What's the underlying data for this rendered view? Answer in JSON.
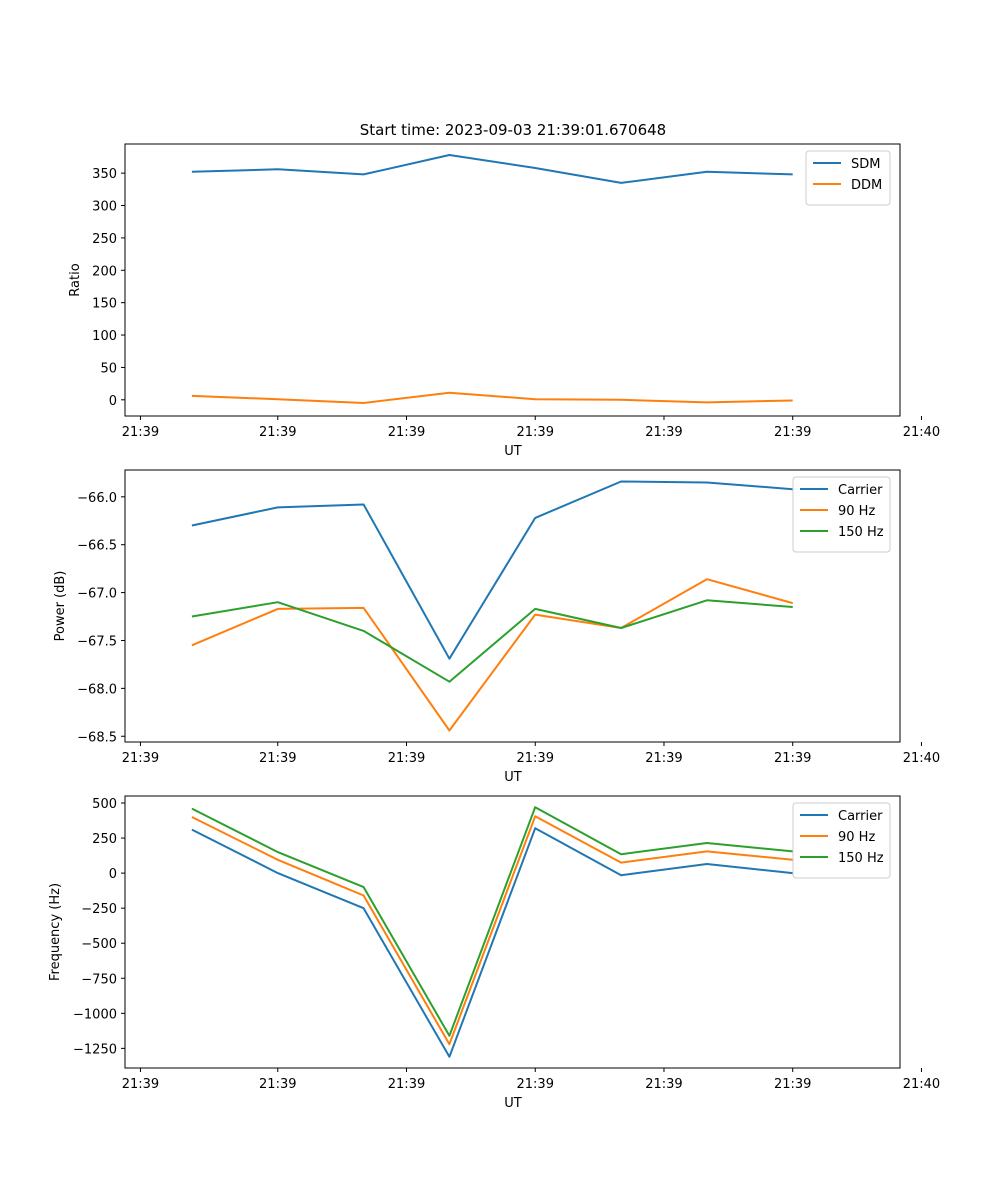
{
  "chart_data": [
    {
      "type": "line",
      "title": "Start time: 2023-09-03 21:39:01.670648",
      "xlabel": "UT",
      "ylabel": "Ratio",
      "x": [
        1,
        2,
        3,
        4,
        5,
        6,
        7,
        8
      ],
      "xlim": [
        0.22,
        9.25
      ],
      "xticks": [
        0.4,
        2.0,
        3.5,
        5.0,
        6.5,
        8.0,
        9.5
      ],
      "xtick_labels": [
        "21:39",
        "21:39",
        "21:39",
        "21:39",
        "21:39",
        "21:39",
        "21:40"
      ],
      "ylim": [
        -25,
        395
      ],
      "yticks": [
        0,
        50,
        100,
        150,
        200,
        250,
        300,
        350
      ],
      "ytick_labels": [
        "0",
        "50",
        "100",
        "150",
        "200",
        "250",
        "300",
        "350"
      ],
      "legend_position": "upper-right",
      "series": [
        {
          "name": "SDM",
          "color": "#1f77b4",
          "values": [
            352,
            356,
            348,
            378,
            358,
            335,
            352,
            348
          ]
        },
        {
          "name": "DDM",
          "color": "#ff7f0e",
          "values": [
            6,
            1,
            -5,
            11,
            1,
            0,
            -4,
            -1
          ]
        }
      ]
    },
    {
      "type": "line",
      "title": "",
      "xlabel": "UT",
      "ylabel": "Power (dB)",
      "x": [
        1,
        2,
        3,
        4,
        5,
        6,
        7,
        8
      ],
      "xlim": [
        0.22,
        9.25
      ],
      "xticks": [
        0.4,
        2.0,
        3.5,
        5.0,
        6.5,
        8.0,
        9.5
      ],
      "xtick_labels": [
        "21:39",
        "21:39",
        "21:39",
        "21:39",
        "21:39",
        "21:39",
        "21:40"
      ],
      "ylim": [
        -68.56,
        -65.72
      ],
      "yticks": [
        -68.5,
        -68.0,
        -67.5,
        -67.0,
        -66.5,
        -66.0
      ],
      "ytick_labels": [
        "−68.5",
        "−68.0",
        "−67.5",
        "−67.0",
        "−66.5",
        "−66.0"
      ],
      "legend_position": "upper-right",
      "series": [
        {
          "name": "Carrier",
          "color": "#1f77b4",
          "values": [
            -66.3,
            -66.11,
            -66.08,
            -67.69,
            -66.22,
            -65.84,
            -65.85,
            -65.92
          ]
        },
        {
          "name": "90 Hz",
          "color": "#ff7f0e",
          "values": [
            -67.55,
            -67.17,
            -67.16,
            -68.44,
            -67.23,
            -67.37,
            -66.86,
            -67.11
          ]
        },
        {
          "name": "150 Hz",
          "color": "#2ca02c",
          "values": [
            -67.25,
            -67.1,
            -67.4,
            -67.93,
            -67.17,
            -67.37,
            -67.08,
            -67.15
          ]
        }
      ]
    },
    {
      "type": "line",
      "title": "",
      "xlabel": "UT",
      "ylabel": "Frequency (Hz)",
      "x": [
        1,
        2,
        3,
        4,
        5,
        6,
        7,
        8
      ],
      "xlim": [
        0.22,
        9.25
      ],
      "xticks": [
        0.4,
        2.0,
        3.5,
        5.0,
        6.5,
        8.0,
        9.5
      ],
      "xtick_labels": [
        "21:39",
        "21:39",
        "21:39",
        "21:39",
        "21:39",
        "21:39",
        "21:40"
      ],
      "ylim": [
        -1390,
        550
      ],
      "yticks": [
        -1250,
        -1000,
        -750,
        -500,
        -250,
        0,
        250,
        500
      ],
      "ytick_labels": [
        "−1250",
        "−1000",
        "−750",
        "−500",
        "−250",
        "0",
        "250",
        "500"
      ],
      "legend_position": "upper-right",
      "series": [
        {
          "name": "Carrier",
          "color": "#1f77b4",
          "values": [
            310,
            0,
            -250,
            -1310,
            320,
            -15,
            65,
            0
          ]
        },
        {
          "name": "90 Hz",
          "color": "#ff7f0e",
          "values": [
            400,
            95,
            -160,
            -1220,
            405,
            75,
            155,
            95
          ]
        },
        {
          "name": "150 Hz",
          "color": "#2ca02c",
          "values": [
            460,
            150,
            -100,
            -1160,
            470,
            135,
            215,
            155
          ]
        }
      ]
    }
  ]
}
